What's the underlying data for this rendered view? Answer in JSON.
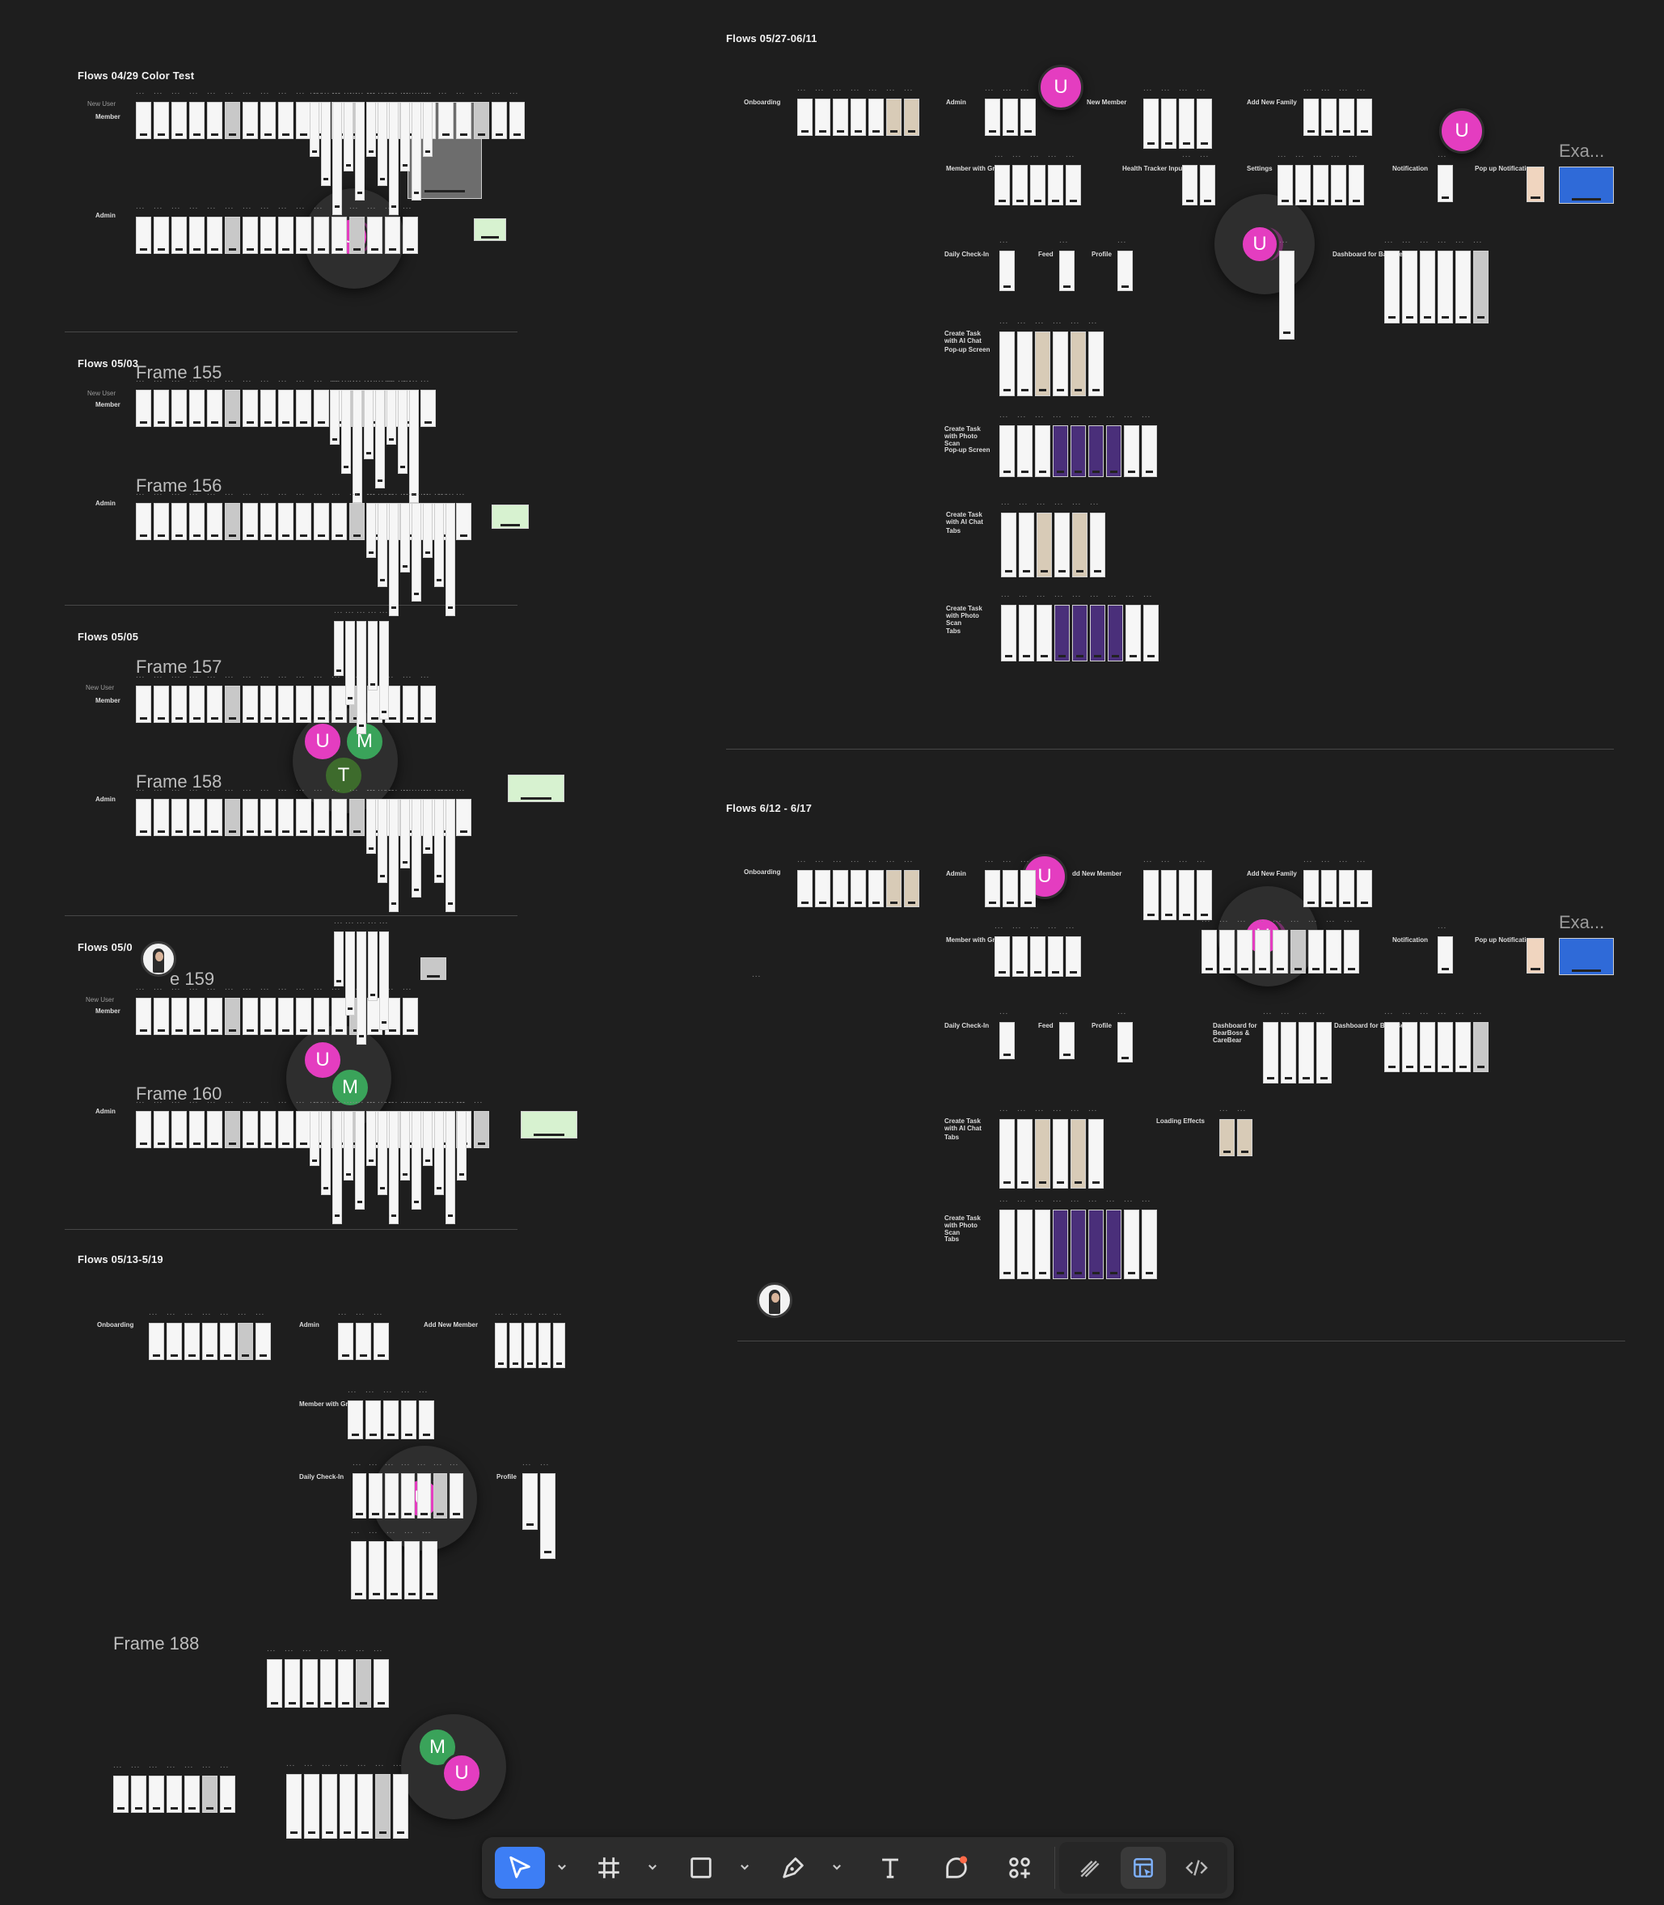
{
  "sections": [
    {
      "id": "s1",
      "title": "Flows 04/29 Color Test",
      "rows": [
        "New User",
        "Member",
        "Admin"
      ]
    },
    {
      "id": "s2",
      "title": "Flows 05/03",
      "frames": [
        "Frame 155",
        "Frame 156"
      ],
      "rows": [
        "New User",
        "Member",
        "Admin"
      ]
    },
    {
      "id": "s3",
      "title": "Flows 05/05",
      "frames": [
        "Frame 157",
        "Frame 158"
      ],
      "rows": [
        "New User",
        "Member",
        "Admin"
      ]
    },
    {
      "id": "s4",
      "title": "Flows 05/0",
      "frames": [
        "e 159",
        "Frame 160"
      ],
      "rows": [
        "New User",
        "Member",
        "Admin"
      ]
    },
    {
      "id": "s5",
      "title": "Flows 05/13-5/19",
      "frames": [
        "Frame 188"
      ],
      "rows": [
        "Onboarding",
        "Admin",
        "Add New Member",
        "Member with Group",
        "Daily Check-In",
        "Profile"
      ]
    },
    {
      "id": "s6",
      "title": "Flows 05/27-06/11",
      "rows": [
        "Onboarding",
        "Admin",
        "New Member",
        "Add New Family",
        "Member with Group",
        "Health Tracker Input",
        "Settings",
        "Notification",
        "Pop up Notification",
        "Daily Check-In",
        "Feed",
        "Profile",
        "Dashboard for BabyBear",
        "Create Task with AI Chat",
        "Pop-up Screen",
        "Create Task with Photo Scan",
        "Pop-up Screen",
        "Create Task with AI Chat",
        "Tabs",
        "Create Task with Photo Scan",
        "Tabs"
      ],
      "exa": "Exa..."
    },
    {
      "id": "s7",
      "title": "Flows 6/12 - 6/17",
      "rows": [
        "Onboarding",
        "Admin",
        "dd New Member",
        "Add New Family",
        "Member with Group",
        "Notification",
        "Pop up Notification",
        "Daily Check-In",
        "Feed",
        "Profile",
        "Dashboard for BearBoss & CareBear",
        "Dashboard for BabyBear",
        "Create Task with AI Chat",
        "Tabs",
        "Loading Effects",
        "Create Task with Photo Scan",
        "Tabs"
      ],
      "exa": "Exa..."
    }
  ],
  "avatars": {
    "u": "U",
    "m": "M",
    "t": "T"
  },
  "ellipsis": "...",
  "colors": {
    "canvas": "#1e1e1e",
    "user_u": "#e43dc0",
    "user_m": "#3aa35a",
    "user_t": "#3d6b2c",
    "active_tool": "#3d7ef5"
  },
  "toolbar": {
    "tools": [
      {
        "name": "move-tool",
        "icon": "pointer-icon",
        "active": true
      },
      {
        "name": "frame-tool",
        "icon": "hash-icon",
        "active": false
      },
      {
        "name": "shape-tool",
        "icon": "square-icon",
        "active": false
      },
      {
        "name": "pen-tool",
        "icon": "pen-icon",
        "active": false
      },
      {
        "name": "text-tool",
        "icon": "text-icon",
        "active": false
      },
      {
        "name": "comment-tool",
        "icon": "comment-icon",
        "active": false
      },
      {
        "name": "actions-tool",
        "icon": "components-icon",
        "active": false
      }
    ],
    "modes": [
      {
        "name": "draw-mode",
        "icon": "draw-icon",
        "active": false
      },
      {
        "name": "design-mode",
        "icon": "design-icon",
        "active": true
      },
      {
        "name": "dev-mode",
        "icon": "code-icon",
        "active": false
      }
    ]
  }
}
